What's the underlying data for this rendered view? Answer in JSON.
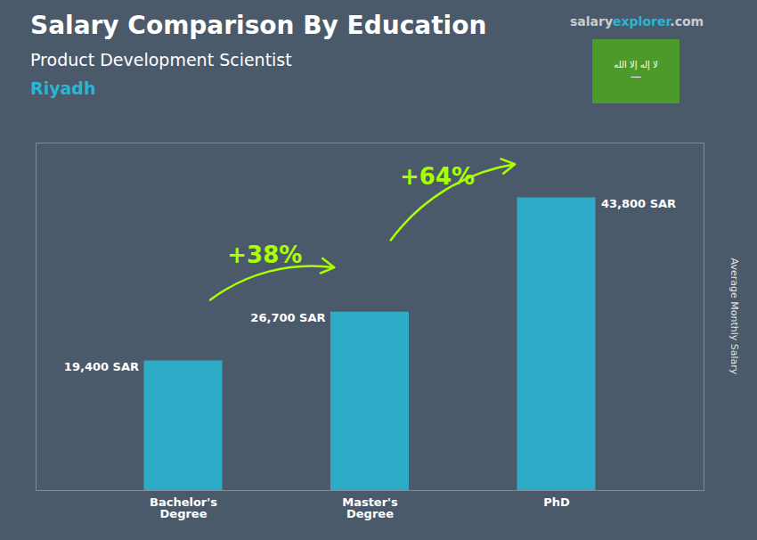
{
  "chart_data": {
    "type": "bar",
    "title": "Salary Comparison By Education",
    "subtitle": "Product Development Scientist",
    "ylabel": "Average Monthly Salary",
    "categories": [
      "Bachelor's\nDegree",
      "Master's\nDegree",
      "PhD"
    ],
    "values": [
      19400,
      26700,
      43800
    ],
    "value_labels": [
      "19,400 SAR",
      "26,700 SAR",
      "43,800 SAR"
    ],
    "data_labels": true,
    "color": "#29b6d4",
    "ylim": [
      0,
      52000
    ],
    "tick_labels": "x",
    "grid": false,
    "annotations": [
      {
        "text": "+38%",
        "from": "Bachelor's\nDegree",
        "to": "Master's\nDegree",
        "color": "#aaff00"
      },
      {
        "text": "+64%",
        "from": "Master's\nDegree",
        "to": "PhD",
        "color": "#aaff00"
      },
      {
        "text": "Riyadh",
        "color": "#29b6d4"
      },
      {
        "parts": [
          {
            "text": "salary",
            "color": "#cccccc"
          },
          {
            "text": "explorer",
            "color": "#29b6d4"
          },
          {
            "text": ".com",
            "color": "#cccccc"
          }
        ]
      },
      {
        "text": "لا إله إلا الله\n—",
        "color": "#ffffff",
        "background": "#4c9a2a"
      }
    ]
  }
}
